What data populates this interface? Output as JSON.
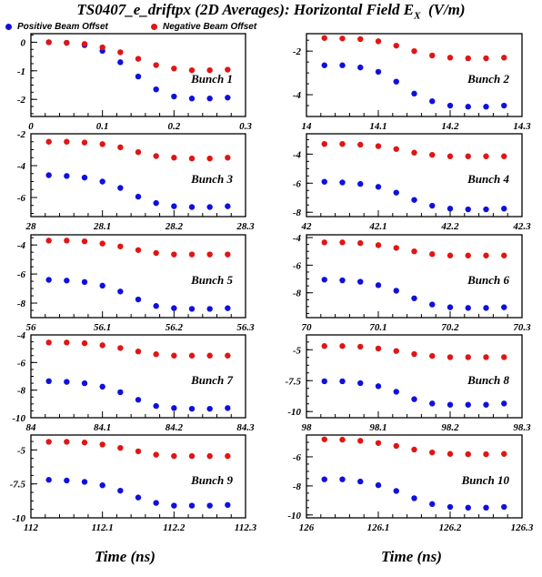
{
  "title_main": "TS0407_e_driftpx (2D Averages): Horizontal Field E",
  "title_sub": "X",
  "title_units": "  (V/m)",
  "legend": {
    "positive_label": "Positive Beam Offset",
    "negative_label": "Negative Beam Offset"
  },
  "colors": {
    "positive": "#1010dd",
    "negative": "#e01515"
  },
  "xaxis_titles": {
    "left": "Time (ns)",
    "right": "Time (ns)"
  },
  "chart_data": [
    {
      "type": "scatter",
      "panel_label": "Bunch 1",
      "xlim": [
        0,
        0.3
      ],
      "ylim": [
        -2.6,
        0.3
      ],
      "xticks": [
        0,
        0.1,
        0.2,
        0.3
      ],
      "xticklabels": [
        "0",
        "0.1",
        "0.2",
        "0.3"
      ],
      "yticks": [
        0,
        -1,
        -2
      ],
      "yticklabels": [
        "0",
        "-1",
        "-2"
      ],
      "series": [
        {
          "name": "Positive Beam Offset",
          "x": [
            0.025,
            0.05,
            0.075,
            0.1,
            0.125,
            0.15,
            0.175,
            0.2,
            0.225,
            0.25,
            0.275
          ],
          "y": [
            0.0,
            -0.02,
            -0.1,
            -0.3,
            -0.7,
            -1.2,
            -1.65,
            -1.9,
            -1.97,
            -1.97,
            -1.94
          ]
        },
        {
          "name": "Negative Beam Offset",
          "x": [
            0.025,
            0.05,
            0.075,
            0.1,
            0.125,
            0.15,
            0.175,
            0.2,
            0.225,
            0.25,
            0.275
          ],
          "y": [
            0.0,
            -0.02,
            -0.06,
            -0.18,
            -0.35,
            -0.58,
            -0.8,
            -0.92,
            -0.98,
            -0.98,
            -0.96
          ]
        }
      ]
    },
    {
      "type": "scatter",
      "panel_label": "Bunch 2",
      "xlim": [
        14,
        14.3
      ],
      "ylim": [
        -5.0,
        -1.2
      ],
      "xticks": [
        14,
        14.1,
        14.2,
        14.3
      ],
      "xticklabels": [
        "14",
        "14.1",
        "14.2",
        "14.3"
      ],
      "yticks": [
        -2,
        -4
      ],
      "yticklabels": [
        "-2",
        "-4"
      ],
      "series": [
        {
          "name": "Positive Beam Offset",
          "x": [
            14.025,
            14.05,
            14.075,
            14.1,
            14.125,
            14.15,
            14.175,
            14.2,
            14.225,
            14.25,
            14.275
          ],
          "y": [
            -2.65,
            -2.65,
            -2.75,
            -2.95,
            -3.4,
            -3.95,
            -4.3,
            -4.5,
            -4.55,
            -4.55,
            -4.5
          ]
        },
        {
          "name": "Negative Beam Offset",
          "x": [
            14.025,
            14.05,
            14.075,
            14.1,
            14.125,
            14.15,
            14.175,
            14.2,
            14.225,
            14.25,
            14.275
          ],
          "y": [
            -1.4,
            -1.42,
            -1.45,
            -1.55,
            -1.75,
            -2.0,
            -2.2,
            -2.3,
            -2.33,
            -2.33,
            -2.3
          ]
        }
      ]
    },
    {
      "type": "scatter",
      "panel_label": "Bunch 3",
      "xlim": [
        28,
        28.3
      ],
      "ylim": [
        -7.2,
        -2.0
      ],
      "xticks": [
        28,
        28.1,
        28.2,
        28.3
      ],
      "xticklabels": [
        "28",
        "28.1",
        "28.2",
        "28.3"
      ],
      "yticks": [
        -2,
        -4,
        -6
      ],
      "yticklabels": [
        "-2",
        "-4",
        "-6"
      ],
      "series": [
        {
          "name": "Positive Beam Offset",
          "x": [
            28.025,
            28.05,
            28.075,
            28.1,
            28.125,
            28.15,
            28.175,
            28.2,
            28.225,
            28.25,
            28.275
          ],
          "y": [
            -4.6,
            -4.65,
            -4.75,
            -5.0,
            -5.4,
            -5.95,
            -6.35,
            -6.55,
            -6.6,
            -6.6,
            -6.55
          ]
        },
        {
          "name": "Negative Beam Offset",
          "x": [
            28.025,
            28.05,
            28.075,
            28.1,
            28.125,
            28.15,
            28.175,
            28.2,
            28.225,
            28.25,
            28.275
          ],
          "y": [
            -2.5,
            -2.5,
            -2.55,
            -2.65,
            -2.85,
            -3.15,
            -3.4,
            -3.5,
            -3.55,
            -3.55,
            -3.5
          ]
        }
      ]
    },
    {
      "type": "scatter",
      "panel_label": "Bunch 4",
      "xlim": [
        42,
        42.3
      ],
      "ylim": [
        -8.3,
        -2.6
      ],
      "xticks": [
        42,
        42.1,
        42.2,
        42.3
      ],
      "xticklabels": [
        "42",
        "42.1",
        "42.2",
        "42.3"
      ],
      "yticks": [
        -4,
        -6,
        -8
      ],
      "yticklabels": [
        "-4",
        "-6",
        "-8"
      ],
      "series": [
        {
          "name": "Positive Beam Offset",
          "x": [
            42.025,
            42.05,
            42.075,
            42.1,
            42.125,
            42.15,
            42.175,
            42.2,
            42.225,
            42.25,
            42.275
          ],
          "y": [
            -5.9,
            -5.95,
            -6.05,
            -6.25,
            -6.65,
            -7.15,
            -7.55,
            -7.75,
            -7.8,
            -7.8,
            -7.75
          ]
        },
        {
          "name": "Negative Beam Offset",
          "x": [
            42.025,
            42.05,
            42.075,
            42.1,
            42.125,
            42.15,
            42.175,
            42.2,
            42.225,
            42.25,
            42.275
          ],
          "y": [
            -3.3,
            -3.3,
            -3.35,
            -3.45,
            -3.65,
            -3.9,
            -4.05,
            -4.15,
            -4.15,
            -4.15,
            -4.15
          ]
        }
      ]
    },
    {
      "type": "scatter",
      "panel_label": "Bunch 5",
      "xlim": [
        56,
        56.3
      ],
      "ylim": [
        -9.0,
        -3.3
      ],
      "xticks": [
        56,
        56.1,
        56.2,
        56.3
      ],
      "xticklabels": [
        "56",
        "56.1",
        "56.2",
        "56.3"
      ],
      "yticks": [
        -4,
        -6,
        -8
      ],
      "yticklabels": [
        "-4",
        "-6",
        "-8"
      ],
      "series": [
        {
          "name": "Positive Beam Offset",
          "x": [
            56.025,
            56.05,
            56.075,
            56.1,
            56.125,
            56.15,
            56.175,
            56.2,
            56.225,
            56.25,
            56.275
          ],
          "y": [
            -6.4,
            -6.45,
            -6.55,
            -6.8,
            -7.2,
            -7.75,
            -8.2,
            -8.35,
            -8.4,
            -8.4,
            -8.35
          ]
        },
        {
          "name": "Negative Beam Offset",
          "x": [
            56.025,
            56.05,
            56.075,
            56.1,
            56.125,
            56.15,
            56.175,
            56.2,
            56.225,
            56.25,
            56.275
          ],
          "y": [
            -3.7,
            -3.7,
            -3.75,
            -3.9,
            -4.1,
            -4.35,
            -4.55,
            -4.65,
            -4.65,
            -4.65,
            -4.65
          ]
        }
      ]
    },
    {
      "type": "scatter",
      "panel_label": "Bunch 6",
      "xlim": [
        70,
        70.3
      ],
      "ylim": [
        -9.8,
        -3.8
      ],
      "xticks": [
        70,
        70.1,
        70.2,
        70.3
      ],
      "xticklabels": [
        "70",
        "70.1",
        "70.2",
        "70.3"
      ],
      "yticks": [
        -4,
        -6,
        -8
      ],
      "yticklabels": [
        "-4",
        "-6",
        "-8"
      ],
      "series": [
        {
          "name": "Positive Beam Offset",
          "x": [
            70.025,
            70.05,
            70.075,
            70.1,
            70.125,
            70.15,
            70.175,
            70.2,
            70.225,
            70.25,
            70.275
          ],
          "y": [
            -7.05,
            -7.1,
            -7.2,
            -7.45,
            -7.85,
            -8.4,
            -8.85,
            -9.05,
            -9.1,
            -9.1,
            -9.05
          ]
        },
        {
          "name": "Negative Beam Offset",
          "x": [
            70.025,
            70.05,
            70.075,
            70.1,
            70.125,
            70.15,
            70.175,
            70.2,
            70.225,
            70.25,
            70.275
          ],
          "y": [
            -4.35,
            -4.35,
            -4.4,
            -4.55,
            -4.75,
            -5.0,
            -5.2,
            -5.3,
            -5.3,
            -5.3,
            -5.3
          ]
        }
      ]
    },
    {
      "type": "scatter",
      "panel_label": "Bunch 7",
      "xlim": [
        84,
        84.3
      ],
      "ylim": [
        -10.0,
        -4.0
      ],
      "xticks": [
        84,
        84.1,
        84.2,
        84.3
      ],
      "xticklabels": [
        "84",
        "84.1",
        "84.2",
        "84.3"
      ],
      "yticks": [
        -4,
        -6,
        -8,
        -10
      ],
      "yticklabels": [
        "-4",
        "-6",
        "-8",
        "-10"
      ],
      "series": [
        {
          "name": "Positive Beam Offset",
          "x": [
            84.025,
            84.05,
            84.075,
            84.1,
            84.125,
            84.15,
            84.175,
            84.2,
            84.225,
            84.25,
            84.275
          ],
          "y": [
            -7.35,
            -7.4,
            -7.5,
            -7.75,
            -8.15,
            -8.7,
            -9.15,
            -9.3,
            -9.35,
            -9.35,
            -9.3
          ]
        },
        {
          "name": "Negative Beam Offset",
          "x": [
            84.025,
            84.05,
            84.075,
            84.1,
            84.125,
            84.15,
            84.175,
            84.2,
            84.225,
            84.25,
            84.275
          ],
          "y": [
            -4.55,
            -4.55,
            -4.6,
            -4.75,
            -4.95,
            -5.2,
            -5.4,
            -5.5,
            -5.5,
            -5.5,
            -5.5
          ]
        }
      ]
    },
    {
      "type": "scatter",
      "panel_label": "Bunch 8",
      "xlim": [
        98,
        98.3
      ],
      "ylim": [
        -10.5,
        -3.8
      ],
      "xticks": [
        98,
        98.1,
        98.2,
        98.3
      ],
      "xticklabels": [
        "98",
        "98.1",
        "98.2",
        "98.3"
      ],
      "yticks": [
        -5,
        -7.5,
        -10
      ],
      "yticklabels": [
        "-5",
        "-7.5",
        "-10"
      ],
      "series": [
        {
          "name": "Positive Beam Offset",
          "x": [
            98.025,
            98.05,
            98.075,
            98.1,
            98.125,
            98.15,
            98.175,
            98.2,
            98.225,
            98.25,
            98.275
          ],
          "y": [
            -7.55,
            -7.55,
            -7.7,
            -7.95,
            -8.4,
            -9.0,
            -9.35,
            -9.45,
            -9.45,
            -9.45,
            -9.35
          ]
        },
        {
          "name": "Negative Beam Offset",
          "x": [
            98.025,
            98.05,
            98.075,
            98.1,
            98.125,
            98.15,
            98.175,
            98.2,
            98.225,
            98.25,
            98.275
          ],
          "y": [
            -4.7,
            -4.7,
            -4.75,
            -4.9,
            -5.1,
            -5.35,
            -5.5,
            -5.6,
            -5.6,
            -5.6,
            -5.6
          ]
        }
      ]
    },
    {
      "type": "scatter",
      "panel_label": "Bunch 9",
      "xlim": [
        112,
        112.3
      ],
      "ylim": [
        -10.0,
        -3.9
      ],
      "xticks": [
        112,
        112.1,
        112.2,
        112.3
      ],
      "xticklabels": [
        "112",
        "112.1",
        "112.2",
        "112.3"
      ],
      "yticks": [
        -5,
        -7.5,
        -10
      ],
      "yticklabels": [
        "-5",
        "-7.5",
        "-10"
      ],
      "series": [
        {
          "name": "Positive Beam Offset",
          "x": [
            112.025,
            112.05,
            112.075,
            112.1,
            112.125,
            112.15,
            112.175,
            112.2,
            112.225,
            112.25,
            112.275
          ],
          "y": [
            -7.2,
            -7.25,
            -7.35,
            -7.6,
            -8.0,
            -8.5,
            -8.9,
            -9.1,
            -9.1,
            -9.1,
            -9.05
          ]
        },
        {
          "name": "Negative Beam Offset",
          "x": [
            112.025,
            112.05,
            112.075,
            112.1,
            112.125,
            112.15,
            112.175,
            112.2,
            112.225,
            112.25,
            112.275
          ],
          "y": [
            -4.4,
            -4.4,
            -4.45,
            -4.6,
            -4.85,
            -5.1,
            -5.35,
            -5.45,
            -5.45,
            -5.45,
            -5.45
          ]
        }
      ]
    },
    {
      "type": "scatter",
      "panel_label": "Bunch 10",
      "xlim": [
        126,
        126.3
      ],
      "ylim": [
        -10.2,
        -4.5
      ],
      "xticks": [
        126,
        126.1,
        126.2,
        126.3
      ],
      "xticklabels": [
        "126",
        "126.1",
        "126.2",
        "126.3"
      ],
      "yticks": [
        -6,
        -8,
        -10
      ],
      "yticklabels": [
        "-6",
        "-8",
        "-10"
      ],
      "series": [
        {
          "name": "Positive Beam Offset",
          "x": [
            126.025,
            126.05,
            126.075,
            126.1,
            126.125,
            126.15,
            126.175,
            126.2,
            126.225,
            126.25,
            126.275
          ],
          "y": [
            -7.55,
            -7.55,
            -7.7,
            -7.95,
            -8.35,
            -8.85,
            -9.25,
            -9.45,
            -9.5,
            -9.5,
            -9.45
          ]
        },
        {
          "name": "Negative Beam Offset",
          "x": [
            126.025,
            126.05,
            126.075,
            126.1,
            126.125,
            126.15,
            126.175,
            126.2,
            126.225,
            126.25,
            126.275
          ],
          "y": [
            -4.8,
            -4.82,
            -4.9,
            -5.05,
            -5.25,
            -5.5,
            -5.7,
            -5.8,
            -5.82,
            -5.82,
            -5.8
          ]
        }
      ]
    }
  ]
}
